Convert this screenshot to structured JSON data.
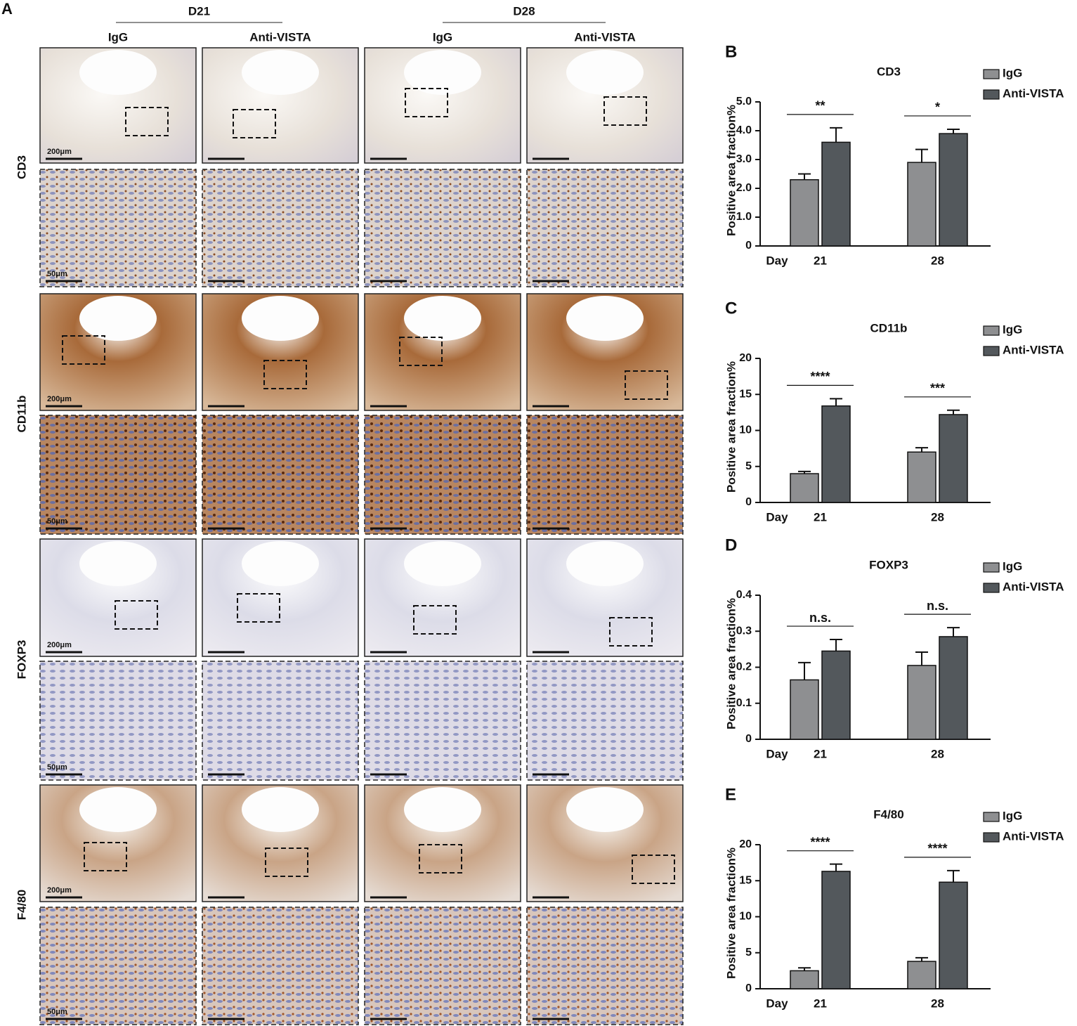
{
  "panel_a": {
    "panel_label": "A",
    "groups": [
      {
        "label": "D21",
        "columns": [
          "IgG",
          "Anti-VISTA"
        ]
      },
      {
        "label": "D28",
        "columns": [
          "IgG",
          "Anti-VISTA"
        ]
      }
    ],
    "rows": [
      {
        "label": "CD3",
        "scale_overview": "200μm",
        "scale_zoom": "50μm"
      },
      {
        "label": "CD11b",
        "scale_overview": "200μm",
        "scale_zoom": "50μm"
      },
      {
        "label": "FOXP3",
        "scale_overview": "200μm",
        "scale_zoom": "50μm"
      },
      {
        "label": "F4/80",
        "scale_overview": "200μm",
        "scale_zoom": "50μm"
      }
    ]
  },
  "chart_data": [
    {
      "type": "bar",
      "panel_label": "B",
      "title": "CD3",
      "ylabel": "Positive area fraction%",
      "xlabel": "Day",
      "categories": [
        "21",
        "28"
      ],
      "ylim": [
        0,
        5
      ],
      "yticks": [
        0,
        {
          "value": 1,
          "label": "1.0"
        },
        {
          "value": 2,
          "label": "2.0"
        },
        {
          "value": 3,
          "label": "3.0"
        },
        {
          "value": 4,
          "label": "4.0"
        },
        {
          "value": 5,
          "label": "5.0"
        }
      ],
      "series": [
        {
          "name": "IgG",
          "color": "#8e8f91",
          "values": [
            2.3,
            2.9
          ],
          "errors": [
            0.2,
            0.45
          ]
        },
        {
          "name": "Anti-VISTA",
          "color": "#53585c",
          "values": [
            3.6,
            3.9
          ],
          "errors": [
            0.5,
            0.15
          ]
        }
      ],
      "significance": [
        "**",
        "*"
      ]
    },
    {
      "type": "bar",
      "panel_label": "C",
      "title": "CD11b",
      "ylabel": "Positive area fraction%",
      "xlabel": "Day",
      "categories": [
        "21",
        "28"
      ],
      "ylim": [
        0,
        20
      ],
      "yticks": [
        0,
        5,
        10,
        15,
        20
      ],
      "series": [
        {
          "name": "IgG",
          "color": "#8e8f91",
          "values": [
            4.0,
            7.0
          ],
          "errors": [
            0.3,
            0.6
          ]
        },
        {
          "name": "Anti-VISTA",
          "color": "#53585c",
          "values": [
            13.4,
            12.2
          ],
          "errors": [
            1.0,
            0.6
          ]
        }
      ],
      "significance": [
        "****",
        "***"
      ]
    },
    {
      "type": "bar",
      "panel_label": "D",
      "title": "FOXP3",
      "ylabel": "Positive area fraction%",
      "xlabel": "Day",
      "categories": [
        "21",
        "28"
      ],
      "ylim": [
        0,
        0.4
      ],
      "yticks": [
        0,
        0.1,
        0.2,
        0.3,
        0.4
      ],
      "series": [
        {
          "name": "IgG",
          "color": "#8e8f91",
          "values": [
            0.165,
            0.205
          ],
          "errors": [
            0.048,
            0.037
          ]
        },
        {
          "name": "Anti-VISTA",
          "color": "#53585c",
          "values": [
            0.245,
            0.285
          ],
          "errors": [
            0.032,
            0.025
          ]
        }
      ],
      "significance": [
        "n.s.",
        "n.s."
      ]
    },
    {
      "type": "bar",
      "panel_label": "E",
      "title": "F4/80",
      "ylabel": "Positive area fraction%",
      "xlabel": "Day",
      "categories": [
        "21",
        "28"
      ],
      "ylim": [
        0,
        20
      ],
      "yticks": [
        0,
        5,
        10,
        15,
        20
      ],
      "series": [
        {
          "name": "IgG",
          "color": "#8e8f91",
          "values": [
            2.5,
            3.8
          ],
          "errors": [
            0.4,
            0.5
          ]
        },
        {
          "name": "Anti-VISTA",
          "color": "#53585c",
          "values": [
            16.3,
            14.8
          ],
          "errors": [
            1.0,
            1.6
          ]
        }
      ],
      "significance": [
        "****",
        "****"
      ]
    }
  ]
}
